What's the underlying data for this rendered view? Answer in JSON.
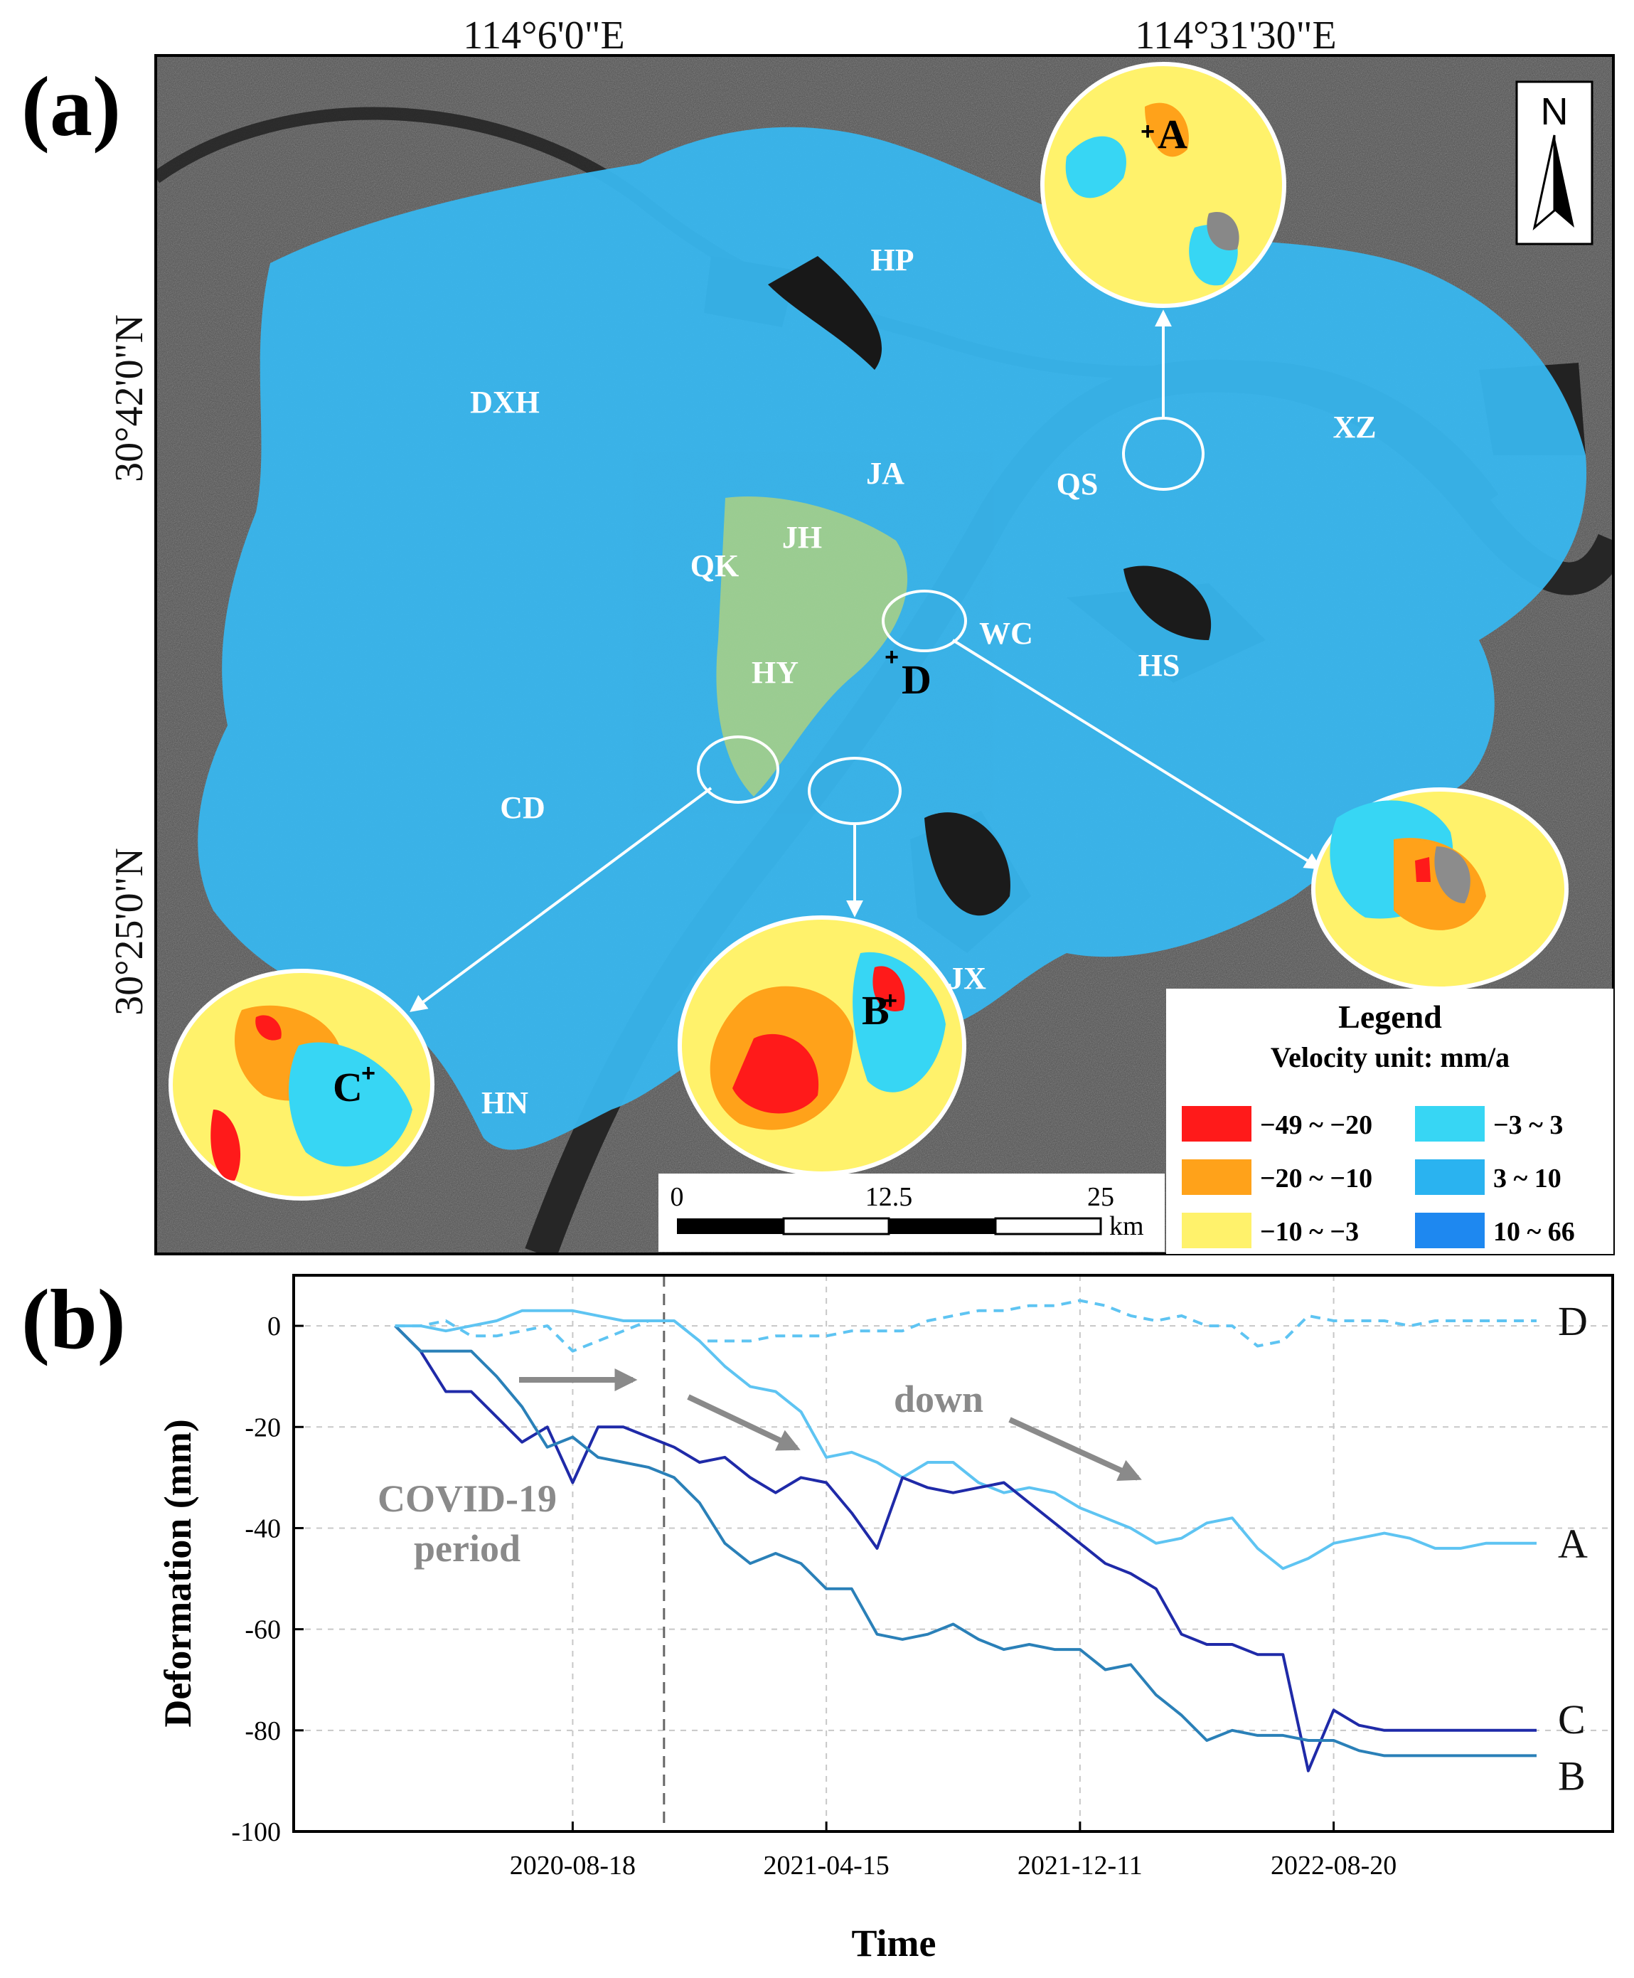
{
  "panel_a": {
    "label": "(a)",
    "lon_ticks": [
      "114°6'0\"E",
      "114°31'30\"E"
    ],
    "lat_ticks": [
      "30°42'0\"N",
      "30°25'0\"N"
    ],
    "north": "N",
    "districts": [
      "HP",
      "DXH",
      "JA",
      "QS",
      "XZ",
      "JH",
      "QK",
      "WC",
      "HS",
      "HY",
      "CD",
      "JX",
      "HN"
    ],
    "points": [
      "A",
      "B",
      "C",
      "D"
    ],
    "scale": {
      "labels": [
        "0",
        "12.5",
        "25"
      ],
      "unit": "km"
    },
    "legend": {
      "title": "Legend",
      "subtitle": "Velocity  unit: mm/a",
      "items": [
        {
          "label": "−49 ~ −20",
          "color": "#ff1a1a"
        },
        {
          "label": "−20 ~ −10",
          "color": "#ffa21a"
        },
        {
          "label": "−10 ~ −3",
          "color": "#fff26b"
        },
        {
          "label": "−3 ~ 3",
          "color": "#37d6f4"
        },
        {
          "label": "3 ~ 10",
          "color": "#2ab3f0"
        },
        {
          "label": "10 ~ 66",
          "color": "#1e88f0"
        }
      ]
    }
  },
  "chart_data": {
    "panel_label": "(b)",
    "type": "line",
    "xlabel": "Time",
    "ylabel": "Deformation (mm)",
    "ylim": [
      -100,
      10
    ],
    "yticks": [
      0,
      -20,
      -40,
      -60,
      -80,
      -100
    ],
    "xlim_index": [
      -4,
      48
    ],
    "xtick_labels": [
      "2020-08-18",
      "2021-04-15",
      "2021-12-11",
      "2022-08-20"
    ],
    "xtick_index": [
      7,
      17,
      27,
      37
    ],
    "grid": true,
    "vline_index": 10.6,
    "annotations": {
      "covid": [
        "COVID-19",
        "period"
      ],
      "down": "down"
    },
    "series": [
      {
        "name": "A",
        "color": "#5ec4f2",
        "dash": false,
        "x": [
          0,
          1,
          2,
          3,
          4,
          5,
          6,
          7,
          8,
          9,
          10,
          11,
          12,
          13,
          14,
          15,
          16,
          17,
          18,
          19,
          20,
          21,
          22,
          23,
          24,
          25,
          26,
          27,
          28,
          29,
          30,
          31,
          32,
          33,
          34,
          35,
          36,
          37,
          38,
          39,
          40,
          41,
          42,
          43,
          44,
          45
        ],
        "values": [
          0,
          0,
          -1,
          0,
          1,
          3,
          3,
          3,
          2,
          1,
          1,
          1,
          -3,
          -8,
          -12,
          -13,
          -17,
          -26,
          -25,
          -27,
          -30,
          -27,
          -27,
          -31,
          -33,
          -32,
          -33,
          -36,
          -38,
          -40,
          -43,
          -42,
          -39,
          -38,
          -44,
          -48,
          -46,
          -43,
          -42,
          -41,
          -42,
          -44,
          -44,
          -43,
          -43,
          -43
        ]
      },
      {
        "name": "C",
        "color": "#1f2aa8",
        "dash": false,
        "x": [
          0,
          1,
          2,
          3,
          4,
          5,
          6,
          7,
          8,
          9,
          10,
          11,
          12,
          13,
          14,
          15,
          16,
          17,
          18,
          19,
          20,
          21,
          22,
          23,
          24,
          25,
          26,
          27,
          28,
          29,
          30,
          31,
          32,
          33,
          34,
          35,
          36,
          37,
          38,
          39,
          40,
          41,
          42,
          43,
          44,
          45
        ],
        "values": [
          0,
          -5,
          -13,
          -13,
          -18,
          -23,
          -20,
          -31,
          -20,
          -20,
          -22,
          -24,
          -27,
          -26,
          -30,
          -33,
          -30,
          -31,
          -37,
          -44,
          -30,
          -32,
          -33,
          -32,
          -31,
          -35,
          -39,
          -43,
          -47,
          -49,
          -52,
          -61,
          -63,
          -63,
          -65,
          -65,
          -88,
          -76,
          -79,
          -80,
          -80,
          -80,
          -80,
          -80,
          -80,
          -80
        ]
      },
      {
        "name": "B",
        "color": "#2a80b8",
        "dash": false,
        "x": [
          0,
          1,
          2,
          3,
          4,
          5,
          6,
          7,
          8,
          9,
          10,
          11,
          12,
          13,
          14,
          15,
          16,
          17,
          18,
          19,
          20,
          21,
          22,
          23,
          24,
          25,
          26,
          27,
          28,
          29,
          30,
          31,
          32,
          33,
          34,
          35,
          36,
          37,
          38,
          39,
          40,
          41,
          42,
          43,
          44,
          45
        ],
        "values": [
          0,
          -5,
          -5,
          -5,
          -10,
          -16,
          -24,
          -22,
          -26,
          -27,
          -28,
          -30,
          -35,
          -43,
          -47,
          -45,
          -47,
          -52,
          -52,
          -61,
          -62,
          -61,
          -59,
          -62,
          -64,
          -63,
          -64,
          -64,
          -68,
          -67,
          -73,
          -77,
          -82,
          -80,
          -81,
          -81,
          -82,
          -82,
          -84,
          -85,
          -85,
          -85,
          -85,
          -85,
          -85,
          -85
        ]
      },
      {
        "name": "D",
        "color": "#5ec4f2",
        "dash": true,
        "x": [
          0,
          1,
          2,
          3,
          4,
          5,
          6,
          7,
          8,
          9,
          10,
          11,
          12,
          13,
          14,
          15,
          16,
          17,
          18,
          19,
          20,
          21,
          22,
          23,
          24,
          25,
          26,
          27,
          28,
          29,
          30,
          31,
          32,
          33,
          34,
          35,
          36,
          37,
          38,
          39,
          40,
          41,
          42,
          43,
          44,
          45
        ],
        "values": [
          0,
          0,
          1,
          -2,
          -2,
          -1,
          0,
          -5,
          -3,
          -1,
          1,
          1,
          -3,
          -3,
          -3,
          -2,
          -2,
          -2,
          -1,
          -1,
          -1,
          1,
          2,
          3,
          3,
          4,
          4,
          5,
          4,
          2,
          1,
          2,
          0,
          0,
          -4,
          -3,
          2,
          1,
          1,
          1,
          0,
          1,
          1,
          1,
          1,
          1
        ]
      }
    ],
    "series_order_labels": [
      "D",
      "A",
      "C",
      "B"
    ]
  }
}
